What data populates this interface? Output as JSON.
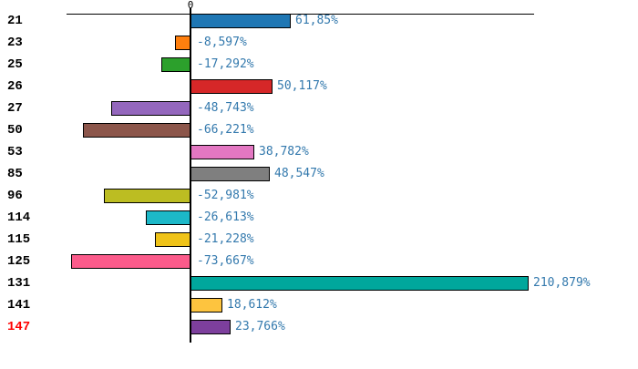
{
  "chart_data": {
    "type": "bar",
    "orientation": "horizontal",
    "title": "",
    "categories": [
      "21",
      "23",
      "25",
      "26",
      "27",
      "50",
      "53",
      "85",
      "96",
      "114",
      "115",
      "125",
      "131",
      "141",
      "147"
    ],
    "values": [
      61.85,
      -8.597,
      -17.292,
      50.117,
      -48.743,
      -66.221,
      38.782,
      48.547,
      -52.981,
      -26.613,
      -21.228,
      -73.667,
      210.879,
      18.612,
      23.766
    ],
    "value_labels": [
      "61,85%",
      "-8,597%",
      "-17,292%",
      "50,117%",
      "-48,743%",
      "-66,221%",
      "38,782%",
      "48,547%",
      "-52,981%",
      "-26,613%",
      "-21,228%",
      "-73,667%",
      "210,879%",
      "18,612%",
      "23,766%"
    ],
    "bar_colors": [
      "#1F77B4",
      "#FF7F0E",
      "#2CA02C",
      "#D62728",
      "#9467BD",
      "#8C564B",
      "#E377C2",
      "#7F7F7F",
      "#BCBD22",
      "#1CB8C8",
      "#EFC319",
      "#FB5B8B",
      "#00A79C",
      "#FDC43F",
      "#7D3F9D"
    ],
    "category_label_colors": [
      "#000000",
      "#000000",
      "#000000",
      "#000000",
      "#000000",
      "#000000",
      "#000000",
      "#000000",
      "#000000",
      "#000000",
      "#000000",
      "#000000",
      "#000000",
      "#000000",
      "#FF0000"
    ],
    "value_label_color": "#3379AD",
    "xlabel": "",
    "ylabel": "",
    "axis": {
      "zero_label": "0",
      "value_unit": "%",
      "xlim": [
        -77.7,
        215.4
      ],
      "grid": false,
      "legend": "none"
    }
  }
}
